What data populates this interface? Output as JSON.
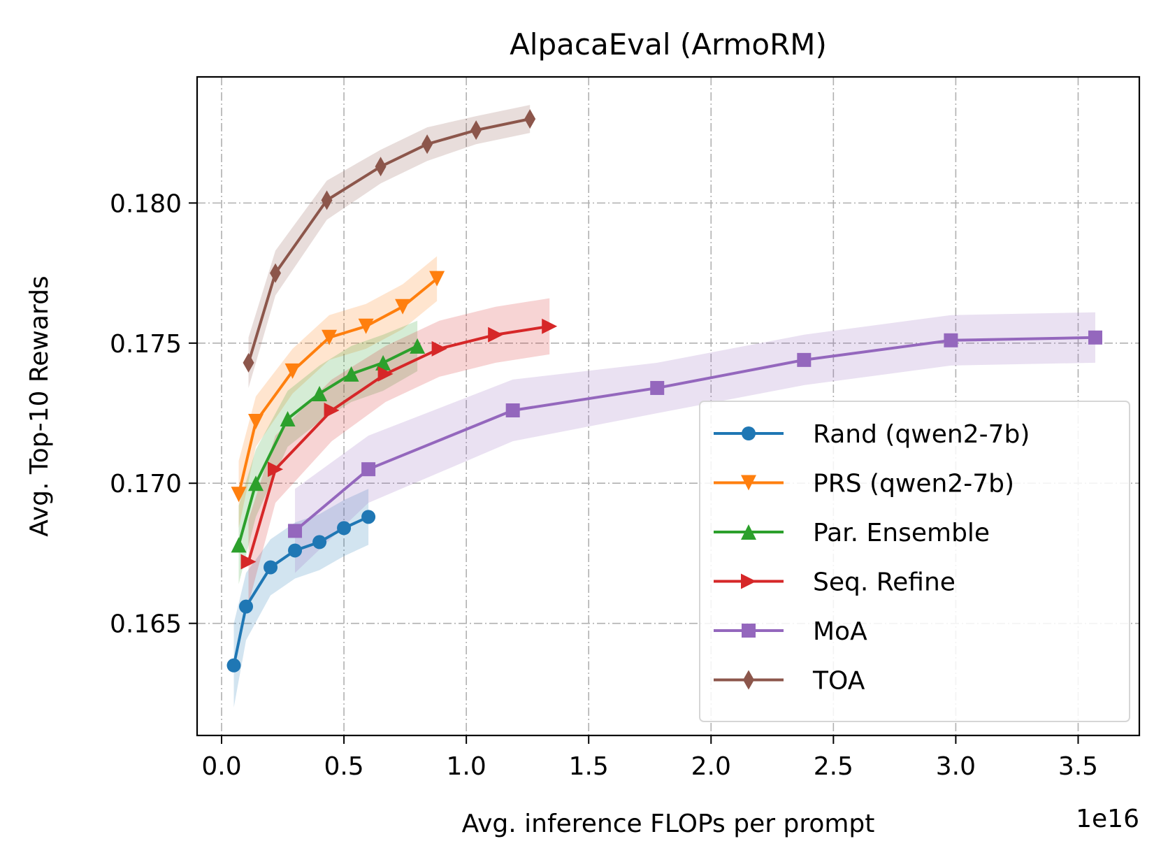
{
  "chart_data": {
    "type": "line",
    "title": "AlpacaEval (ArmoRM)",
    "xlabel": "Avg. inference FLOPs per prompt",
    "ylabel": "Avg. Top-10 Rewards",
    "x_offset_label": "1e16",
    "xlim": [
      -0.1,
      3.75
    ],
    "ylim": [
      0.161,
      0.1845
    ],
    "xticks": [
      0.0,
      0.5,
      1.0,
      1.5,
      2.0,
      2.5,
      3.0,
      3.5
    ],
    "xtick_labels": [
      "0.0",
      "0.5",
      "1.0",
      "1.5",
      "2.0",
      "2.5",
      "3.0",
      "3.5"
    ],
    "yticks": [
      0.165,
      0.17,
      0.175,
      0.18
    ],
    "ytick_labels": [
      "0.165",
      "0.170",
      "0.175",
      "0.180"
    ],
    "grid": true,
    "legend_position": "lower-right",
    "series": [
      {
        "name": "Rand (qwen2-7b)",
        "color": "#1f77b4",
        "marker": "circle",
        "x": [
          0.05,
          0.1,
          0.2,
          0.3,
          0.4,
          0.5,
          0.6
        ],
        "y": [
          0.1635,
          0.1656,
          0.167,
          0.1676,
          0.1679,
          0.1684,
          0.1688
        ],
        "band": [
          0.0015,
          0.0012,
          0.001,
          0.001,
          0.001,
          0.001,
          0.001
        ]
      },
      {
        "name": "PRS (qwen2-7b)",
        "color": "#ff7f0e",
        "marker": "triangle-down",
        "x": [
          0.07,
          0.14,
          0.29,
          0.44,
          0.59,
          0.74,
          0.88
        ],
        "y": [
          0.1696,
          0.1722,
          0.174,
          0.1752,
          0.1756,
          0.1763,
          0.1773
        ],
        "band": [
          0.0012,
          0.0009,
          0.0008,
          0.0008,
          0.0008,
          0.0008,
          0.0008
        ]
      },
      {
        "name": "Par. Ensemble",
        "color": "#2ca02c",
        "marker": "triangle-up",
        "x": [
          0.07,
          0.14,
          0.27,
          0.4,
          0.53,
          0.66,
          0.8
        ],
        "y": [
          0.1678,
          0.17,
          0.1723,
          0.1732,
          0.1739,
          0.1743,
          0.1749
        ],
        "band": [
          0.0014,
          0.0012,
          0.001,
          0.001,
          0.001,
          0.001,
          0.0009
        ]
      },
      {
        "name": "Seq. Refine",
        "color": "#d62728",
        "marker": "triangle-right",
        "x": [
          0.11,
          0.22,
          0.45,
          0.67,
          0.89,
          1.12,
          1.34
        ],
        "y": [
          0.1672,
          0.1705,
          0.1726,
          0.1739,
          0.1748,
          0.1753,
          0.1756
        ],
        "band": [
          0.0015,
          0.0012,
          0.0011,
          0.001,
          0.001,
          0.001,
          0.001
        ]
      },
      {
        "name": "MoA",
        "color": "#9467bd",
        "marker": "square",
        "x": [
          0.3,
          0.6,
          1.19,
          1.78,
          2.38,
          2.98,
          3.57
        ],
        "y": [
          0.1683,
          0.1705,
          0.1726,
          0.1734,
          0.1744,
          0.1751,
          0.1752
        ],
        "band": [
          0.0015,
          0.0012,
          0.0011,
          0.0009,
          0.0009,
          0.0009,
          0.0009
        ]
      },
      {
        "name": "TOA",
        "color": "#8c564b",
        "marker": "thin-diamond",
        "x": [
          0.11,
          0.22,
          0.43,
          0.65,
          0.84,
          1.04,
          1.26
        ],
        "y": [
          0.1743,
          0.1775,
          0.1801,
          0.1813,
          0.1821,
          0.1826,
          0.183
        ],
        "band": [
          0.0009,
          0.0008,
          0.0007,
          0.0006,
          0.0006,
          0.0005,
          0.0005
        ]
      }
    ]
  }
}
